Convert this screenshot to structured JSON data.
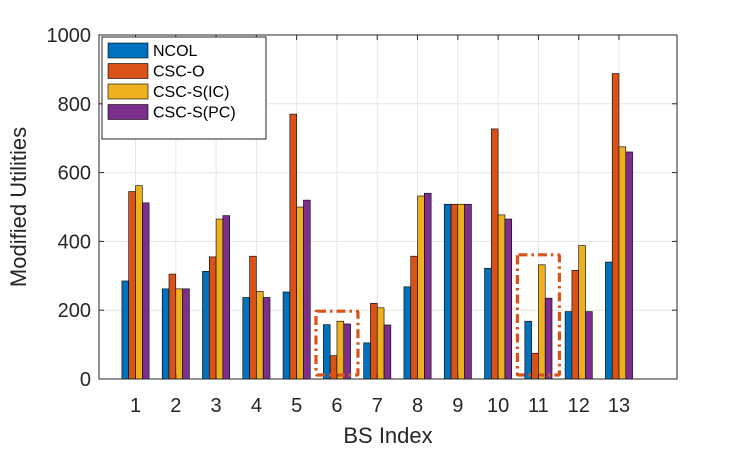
{
  "chart_data": {
    "type": "bar",
    "title": "",
    "xlabel": "BS Index",
    "ylabel": "Modified Utilities",
    "ylim": [
      0,
      1000
    ],
    "yticks": [
      0,
      200,
      400,
      600,
      800,
      1000
    ],
    "grid": true,
    "legend_position": "top-left",
    "categories": [
      "1",
      "2",
      "3",
      "4",
      "5",
      "6",
      "7",
      "8",
      "9",
      "10",
      "11",
      "12",
      "13"
    ],
    "series": [
      {
        "name": "NCOL",
        "color": "#0072BD",
        "values": [
          285,
          262,
          313,
          237,
          253,
          158,
          105,
          268,
          508,
          322,
          168,
          196,
          340
        ]
      },
      {
        "name": "CSC-O",
        "color": "#D95319",
        "values": [
          545,
          305,
          355,
          357,
          770,
          68,
          220,
          357,
          508,
          727,
          75,
          316,
          888
        ]
      },
      {
        "name": "CSC-S(IC)",
        "color": "#EDB120",
        "values": [
          562,
          262,
          465,
          255,
          500,
          168,
          207,
          532,
          508,
          477,
          332,
          388,
          675
        ]
      },
      {
        "name": "CSC-S(PC)",
        "color": "#7E2F8E",
        "values": [
          512,
          262,
          475,
          237,
          520,
          160,
          157,
          540,
          508,
          465,
          235,
          196,
          660
        ]
      }
    ],
    "highlights": [
      {
        "category": "6",
        "style": "dash-dot box",
        "color": "#D95319"
      },
      {
        "category": "11",
        "style": "dash-dot box",
        "color": "#D95319"
      }
    ]
  }
}
